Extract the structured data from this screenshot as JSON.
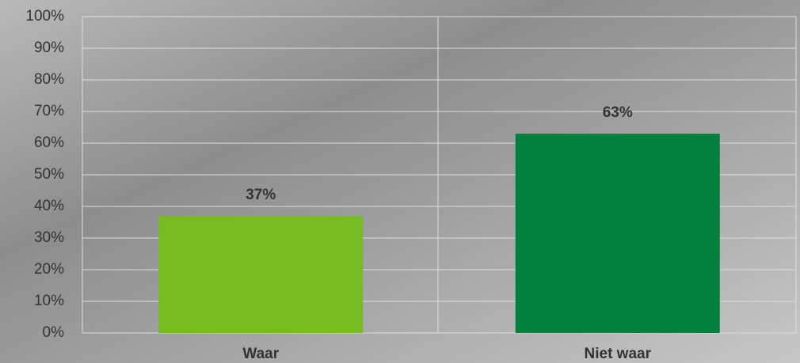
{
  "chart_data": {
    "type": "bar",
    "categories": [
      "Waar",
      "Niet waar"
    ],
    "values": [
      37,
      63
    ],
    "value_labels": [
      "37%",
      "63%"
    ],
    "colors": [
      "#78bc21",
      "#007f3d"
    ],
    "ylim": [
      0,
      100
    ],
    "yticks": [
      {
        "value": 0,
        "label": "0%"
      },
      {
        "value": 10,
        "label": "10%"
      },
      {
        "value": 20,
        "label": "20%"
      },
      {
        "value": 30,
        "label": "30%"
      },
      {
        "value": 40,
        "label": "40%"
      },
      {
        "value": 50,
        "label": "50%"
      },
      {
        "value": 60,
        "label": "60%"
      },
      {
        "value": 70,
        "label": "70%"
      },
      {
        "value": 80,
        "label": "80%"
      },
      {
        "value": 90,
        "label": "90%"
      },
      {
        "value": 100,
        "label": "100%"
      }
    ],
    "grid": true
  }
}
